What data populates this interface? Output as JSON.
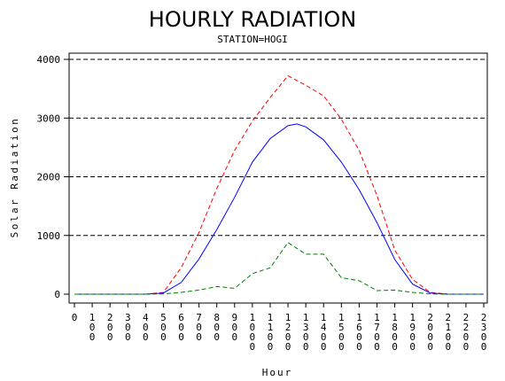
{
  "chart_data": {
    "type": "line",
    "title": "HOURLY RADIATION",
    "subtitle": "STATION=HOGI",
    "xlabel": "Hour",
    "ylabel": "Solar Radiation",
    "x": [
      0,
      100,
      200,
      300,
      400,
      500,
      600,
      700,
      800,
      900,
      1000,
      1100,
      1200,
      1300,
      1400,
      1500,
      1600,
      1700,
      1800,
      1900,
      2000,
      2100,
      2200,
      2300
    ],
    "x_tick_labels": [
      "0",
      "100",
      "200",
      "300",
      "400",
      "500",
      "600",
      "700",
      "800",
      "900",
      "1000",
      "1100",
      "1200",
      "1300",
      "1400",
      "1500",
      "1600",
      "1700",
      "1800",
      "1900",
      "2000",
      "2100",
      "2200",
      "2300"
    ],
    "xlim": [
      0,
      2300
    ],
    "ylim": [
      0,
      4000
    ],
    "y_ticks": [
      0,
      1000,
      2000,
      3000,
      4000
    ],
    "grid": "horizontal dashed",
    "series": [
      {
        "color": "#ff0000",
        "style": "dashed",
        "points": [
          [
            0,
            0
          ],
          [
            100,
            0
          ],
          [
            200,
            0
          ],
          [
            300,
            0
          ],
          [
            400,
            0
          ],
          [
            500,
            30
          ],
          [
            600,
            450
          ],
          [
            700,
            1050
          ],
          [
            800,
            1800
          ],
          [
            900,
            2450
          ],
          [
            1000,
            2950
          ],
          [
            1100,
            3350
          ],
          [
            1200,
            3720
          ],
          [
            1300,
            3560
          ],
          [
            1400,
            3380
          ],
          [
            1500,
            2980
          ],
          [
            1600,
            2450
          ],
          [
            1700,
            1680
          ],
          [
            1800,
            750
          ],
          [
            1900,
            250
          ],
          [
            2000,
            30
          ],
          [
            2100,
            0
          ],
          [
            2200,
            0
          ],
          [
            2300,
            0
          ]
        ]
      },
      {
        "color": "#0000ff",
        "style": "solid",
        "points": [
          [
            0,
            0
          ],
          [
            100,
            0
          ],
          [
            200,
            0
          ],
          [
            300,
            0
          ],
          [
            400,
            0
          ],
          [
            500,
            20
          ],
          [
            600,
            200
          ],
          [
            700,
            600
          ],
          [
            800,
            1100
          ],
          [
            900,
            1650
          ],
          [
            1000,
            2250
          ],
          [
            1100,
            2650
          ],
          [
            1200,
            2870
          ],
          [
            1250,
            2900
          ],
          [
            1300,
            2850
          ],
          [
            1400,
            2630
          ],
          [
            1500,
            2250
          ],
          [
            1600,
            1780
          ],
          [
            1700,
            1220
          ],
          [
            1800,
            590
          ],
          [
            1900,
            170
          ],
          [
            2000,
            20
          ],
          [
            2100,
            0
          ],
          [
            2200,
            0
          ],
          [
            2300,
            0
          ]
        ]
      },
      {
        "color": "#008000",
        "style": "dashed",
        "points": [
          [
            0,
            0
          ],
          [
            100,
            0
          ],
          [
            200,
            0
          ],
          [
            300,
            0
          ],
          [
            400,
            0
          ],
          [
            500,
            5
          ],
          [
            600,
            30
          ],
          [
            700,
            70
          ],
          [
            800,
            130
          ],
          [
            900,
            100
          ],
          [
            1000,
            350
          ],
          [
            1100,
            450
          ],
          [
            1200,
            880
          ],
          [
            1300,
            680
          ],
          [
            1400,
            680
          ],
          [
            1500,
            280
          ],
          [
            1600,
            230
          ],
          [
            1700,
            60
          ],
          [
            1800,
            70
          ],
          [
            1900,
            30
          ],
          [
            2000,
            5
          ],
          [
            2100,
            0
          ],
          [
            2200,
            0
          ],
          [
            2300,
            0
          ]
        ]
      }
    ]
  }
}
